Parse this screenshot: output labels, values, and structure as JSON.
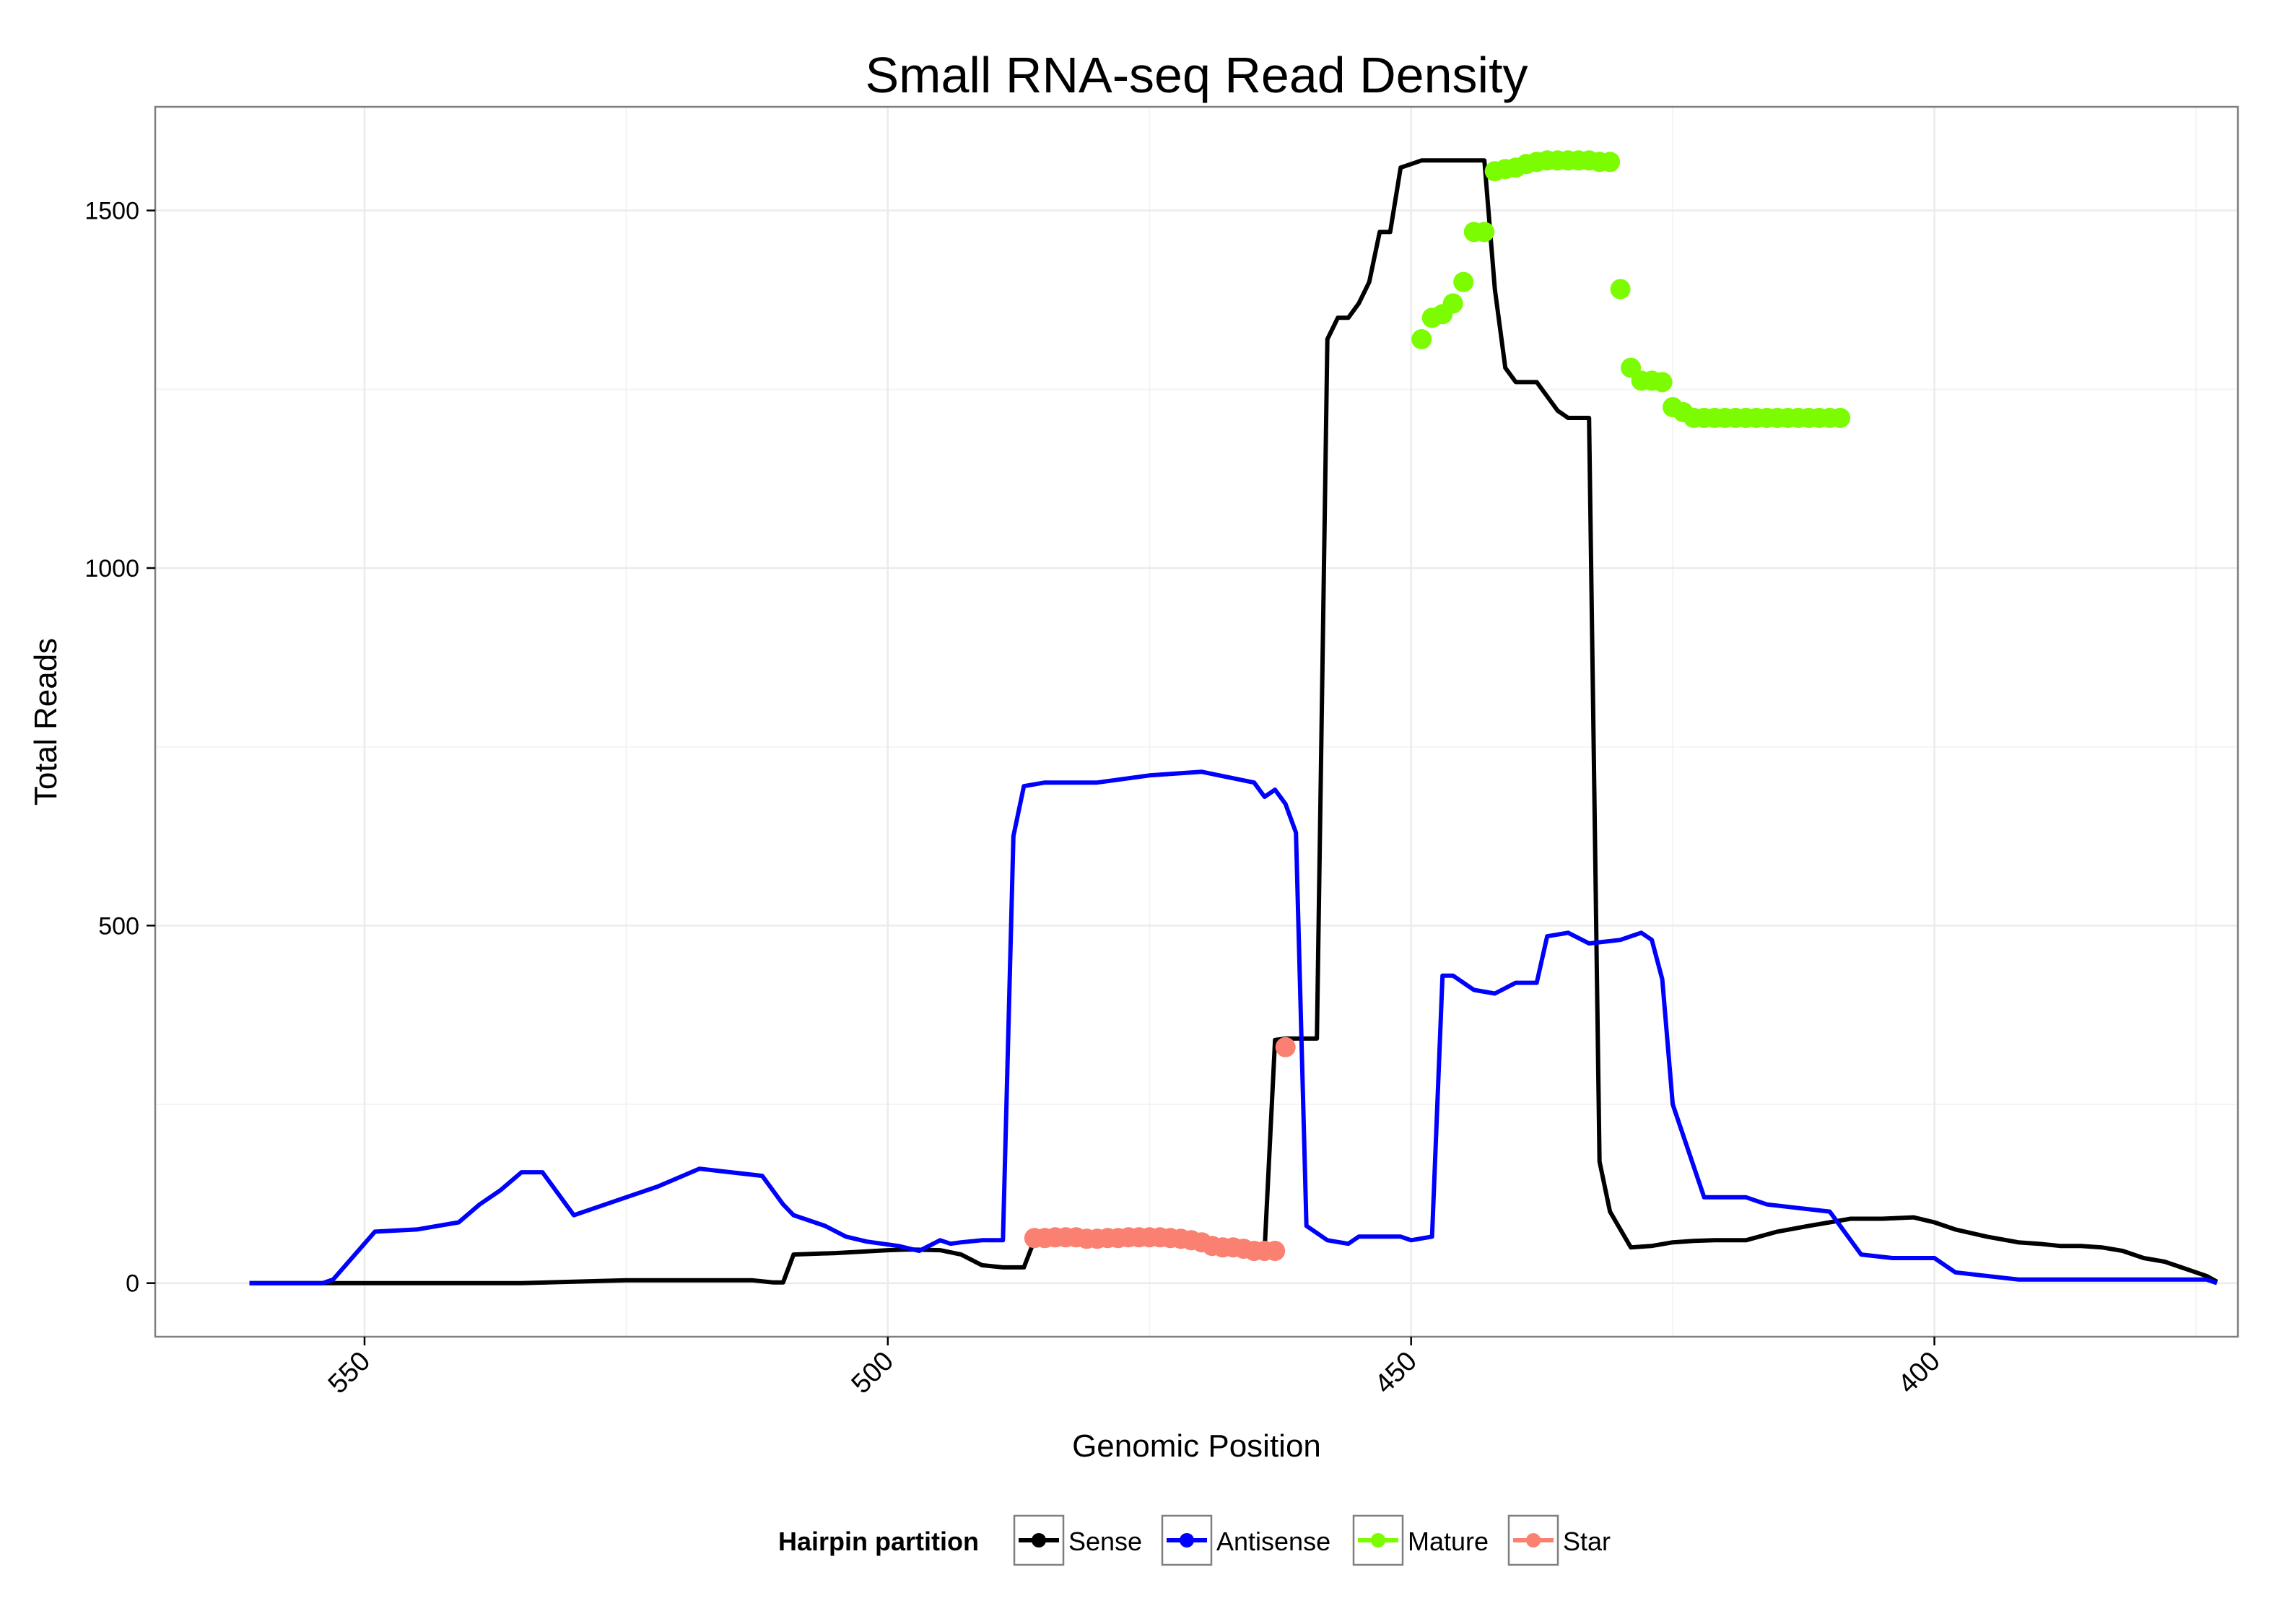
{
  "chart_data": {
    "type": "line",
    "title": "Small RNA-seq Read Density",
    "xlabel": "Genomic Position",
    "ylabel": "Total Reads",
    "x_reversed": true,
    "xlim": [
      570,
      371
    ],
    "ylim": [
      -75,
      1645
    ],
    "x_ticks": [
      550,
      500,
      450,
      400
    ],
    "x_tick_labels": [
      "550",
      "500",
      "450",
      "400"
    ],
    "y_ticks": [
      0,
      500,
      1000,
      1500
    ],
    "y_tick_labels": [
      "0",
      "500",
      "1000",
      "1500"
    ],
    "grid": true,
    "legend": {
      "title": "Hairpin partition",
      "position": "bottom",
      "entries": [
        {
          "label": "Sense",
          "color": "#000000"
        },
        {
          "label": "Antisense",
          "color": "#0000ff"
        },
        {
          "label": "Mature",
          "color": "#7cfc00"
        },
        {
          "label": "Star",
          "color": "#fa8072"
        }
      ]
    },
    "series": [
      {
        "name": "Sense",
        "color": "#000000",
        "x": [
          561,
          555,
          550,
          545,
          540,
          535,
          530,
          525,
          520,
          515,
          513,
          511,
          510,
          509,
          505,
          500,
          498,
          495,
          493,
          491,
          489,
          487,
          486,
          485,
          483,
          481,
          480,
          478,
          476,
          474,
          473,
          472,
          470,
          468,
          466,
          465,
          464,
          463,
          462,
          460,
          459,
          458,
          457,
          456,
          455,
          454,
          453,
          452,
          451,
          450,
          449,
          448,
          447,
          446,
          445,
          444,
          443,
          442,
          441,
          440,
          438,
          436,
          435,
          434,
          433,
          432,
          431,
          429,
          427,
          425,
          423,
          421,
          420,
          418,
          415,
          412,
          410,
          408,
          405,
          402,
          400,
          398,
          395,
          392,
          390,
          388,
          386,
          384,
          382,
          380,
          378,
          376,
          374,
          373
        ],
        "y": [
          0,
          0,
          0,
          0,
          0,
          0,
          2,
          4,
          4,
          4,
          4,
          1,
          1,
          40,
          42,
          46,
          47,
          46,
          40,
          25,
          22,
          22,
          60,
          62,
          62,
          62,
          62,
          63,
          62,
          61,
          60,
          58,
          55,
          50,
          45,
          43,
          45,
          340,
          342,
          342,
          342,
          1320,
          1350,
          1350,
          1370,
          1400,
          1470,
          1470,
          1560,
          1565,
          1570,
          1570,
          1570,
          1570,
          1570,
          1570,
          1570,
          1390,
          1280,
          1260,
          1260,
          1220,
          1210,
          1210,
          1210,
          170,
          100,
          50,
          52,
          57,
          59,
          60,
          60,
          60,
          72,
          80,
          85,
          90,
          90,
          92,
          85,
          75,
          65,
          57,
          55,
          52,
          52,
          50,
          45,
          35,
          30,
          20,
          10,
          2
        ]
      },
      {
        "name": "Antisense",
        "color": "#0000ff",
        "x": [
          561,
          555,
          554,
          553,
          549,
          545,
          541,
          539,
          537,
          535,
          533,
          530,
          528,
          525,
          522,
          518,
          512,
          510,
          509,
          506,
          504,
          502,
          499,
          497,
          495,
          494,
          493,
          491,
          489,
          488,
          487,
          485,
          480,
          475,
          470,
          465,
          464,
          463,
          462,
          461,
          460,
          458,
          456,
          455,
          451,
          450,
          448,
          447,
          446,
          444,
          442,
          440,
          438,
          437,
          435,
          433,
          430,
          429,
          428,
          427,
          426,
          425,
          422,
          418,
          416,
          413,
          410,
          407,
          404,
          402,
          400,
          398,
          395,
          392,
          388,
          385,
          380,
          374,
          373
        ],
        "y": [
          0,
          0,
          0,
          5,
          72,
          75,
          85,
          110,
          130,
          155,
          155,
          95,
          105,
          120,
          135,
          160,
          150,
          110,
          95,
          80,
          65,
          58,
          52,
          45,
          60,
          55,
          57,
          60,
          60,
          625,
          695,
          700,
          700,
          710,
          715,
          700,
          680,
          690,
          670,
          630,
          80,
          60,
          55,
          65,
          65,
          60,
          65,
          430,
          430,
          410,
          405,
          420,
          420,
          485,
          490,
          475,
          480,
          485,
          490,
          480,
          425,
          250,
          120,
          120,
          110,
          105,
          100,
          40,
          35,
          35,
          35,
          15,
          10,
          5,
          5,
          5,
          5,
          5,
          0
        ]
      },
      {
        "name": "Mature",
        "color": "#7cfc00",
        "x": [
          449,
          448,
          447,
          446,
          445,
          444,
          443,
          442,
          441,
          440,
          439,
          438,
          437,
          436,
          435,
          434,
          433,
          432,
          431,
          430,
          429,
          428,
          427,
          426,
          425,
          424,
          423,
          422,
          421,
          420,
          419,
          418,
          417,
          416,
          415,
          414,
          413,
          412,
          411,
          410,
          409
        ],
        "y": [
          1320,
          1350,
          1355,
          1370,
          1400,
          1470,
          1470,
          1555,
          1558,
          1560,
          1565,
          1568,
          1570,
          1570,
          1570,
          1570,
          1570,
          1568,
          1568,
          1390,
          1280,
          1262,
          1262,
          1260,
          1225,
          1218,
          1210,
          1210,
          1210,
          1210,
          1210,
          1210,
          1210,
          1210,
          1210,
          1210,
          1210,
          1210,
          1210,
          1210,
          1210
        ]
      },
      {
        "name": "Star",
        "color": "#fa8072",
        "x": [
          486,
          485,
          484,
          483,
          482,
          481,
          480,
          479,
          478,
          477,
          476,
          475,
          474,
          473,
          472,
          471,
          470,
          469,
          468,
          467,
          466,
          465,
          464,
          463,
          462
        ],
        "y": [
          63,
          63,
          64,
          64,
          64,
          62,
          62,
          63,
          63,
          64,
          64,
          64,
          64,
          63,
          62,
          60,
          57,
          52,
          50,
          50,
          48,
          45,
          45,
          45,
          330
        ]
      }
    ]
  }
}
